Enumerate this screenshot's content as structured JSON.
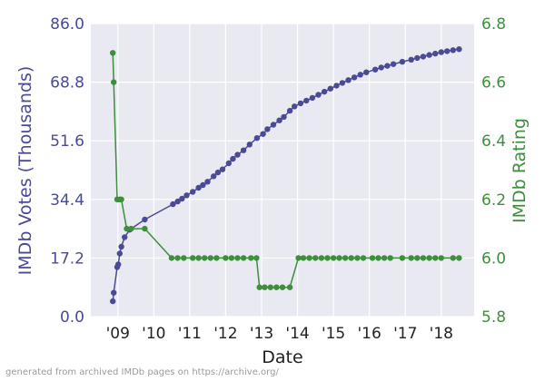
{
  "chart_data": {
    "type": "line",
    "x_axis": {
      "label": "Date",
      "type": "date",
      "range": [
        "2008-04-01",
        "2018-12-01"
      ],
      "ticks": [
        {
          "date": "2009-01-01",
          "label": "'09"
        },
        {
          "date": "2010-01-01",
          "label": "'10"
        },
        {
          "date": "2011-01-01",
          "label": "'11"
        },
        {
          "date": "2012-01-01",
          "label": "'12"
        },
        {
          "date": "2013-01-01",
          "label": "'13"
        },
        {
          "date": "2014-01-01",
          "label": "'14"
        },
        {
          "date": "2015-01-01",
          "label": "'15"
        },
        {
          "date": "2016-01-01",
          "label": "'16"
        },
        {
          "date": "2017-01-01",
          "label": "'17"
        },
        {
          "date": "2018-01-01",
          "label": "'18"
        }
      ]
    },
    "y_left": {
      "label": "IMDb Votes (Thousands)",
      "range": [
        0,
        86
      ],
      "ticks": [
        "0.0",
        "17.2",
        "34.4",
        "51.6",
        "68.8",
        "86.0"
      ],
      "tick_values": [
        0,
        17.2,
        34.4,
        51.6,
        68.8,
        86.0
      ],
      "color": "#4a4a96"
    },
    "y_right": {
      "label": "IMDb Rating",
      "range": [
        5.8,
        6.8
      ],
      "ticks": [
        "5.8",
        "6.0",
        "6.2",
        "6.4",
        "6.6",
        "6.8"
      ],
      "tick_values": [
        5.8,
        6.0,
        6.2,
        6.4,
        6.6,
        6.8
      ],
      "color": "#3e8e3e"
    },
    "grid": true,
    "background": "#e9e9f1",
    "series": [
      {
        "axis": "left",
        "color": "#4a4a96",
        "points": [
          [
            "2008-11-10",
            4.5
          ],
          [
            "2008-11-20",
            7
          ],
          [
            "2008-12-25",
            14.5
          ],
          [
            "2009-01-05",
            15.3
          ],
          [
            "2009-01-20",
            18.5
          ],
          [
            "2009-02-05",
            20.5
          ],
          [
            "2009-03-10",
            23.3
          ],
          [
            "2009-05-01",
            25.5
          ],
          [
            "2009-10-01",
            28.5
          ],
          [
            "2010-07-15",
            33
          ],
          [
            "2010-09-01",
            33.8
          ],
          [
            "2010-10-15",
            34.6
          ],
          [
            "2010-12-01",
            35.6
          ],
          [
            "2011-02-01",
            36.6
          ],
          [
            "2011-04-01",
            37.8
          ],
          [
            "2011-05-15",
            38.6
          ],
          [
            "2011-07-01",
            39.6
          ],
          [
            "2011-09-01",
            41.2
          ],
          [
            "2011-10-15",
            42.3
          ],
          [
            "2011-12-01",
            43.2
          ],
          [
            "2012-02-01",
            45
          ],
          [
            "2012-03-15",
            46.3
          ],
          [
            "2012-05-01",
            47.5
          ],
          [
            "2012-07-01",
            48.8
          ],
          [
            "2012-09-01",
            50.5
          ],
          [
            "2012-11-15",
            52.4
          ],
          [
            "2013-01-15",
            53.6
          ],
          [
            "2013-03-01",
            55
          ],
          [
            "2013-05-01",
            56.3
          ],
          [
            "2013-07-01",
            57.6
          ],
          [
            "2013-08-15",
            58.6
          ],
          [
            "2013-10-15",
            60.4
          ],
          [
            "2013-12-01",
            61.7
          ],
          [
            "2014-02-01",
            62.6
          ],
          [
            "2014-04-01",
            63.4
          ],
          [
            "2014-06-01",
            64.2
          ],
          [
            "2014-08-01",
            65.1
          ],
          [
            "2014-10-01",
            66
          ],
          [
            "2014-12-01",
            66.9
          ],
          [
            "2015-02-01",
            67.8
          ],
          [
            "2015-04-01",
            68.6
          ],
          [
            "2015-06-01",
            69.4
          ],
          [
            "2015-08-01",
            70.2
          ],
          [
            "2015-10-01",
            71
          ],
          [
            "2015-12-01",
            71.7
          ],
          [
            "2016-03-01",
            72.5
          ],
          [
            "2016-05-01",
            73.1
          ],
          [
            "2016-07-01",
            73.6
          ],
          [
            "2016-09-01",
            74.1
          ],
          [
            "2016-12-01",
            74.8
          ],
          [
            "2017-03-01",
            75.4
          ],
          [
            "2017-05-01",
            75.9
          ],
          [
            "2017-07-01",
            76.3
          ],
          [
            "2017-09-01",
            76.8
          ],
          [
            "2017-11-01",
            77.2
          ],
          [
            "2018-01-01",
            77.6
          ],
          [
            "2018-03-01",
            77.9
          ],
          [
            "2018-05-01",
            78.2
          ],
          [
            "2018-07-01",
            78.5
          ]
        ]
      },
      {
        "axis": "right",
        "color": "#3e8e3e",
        "points": [
          [
            "2008-11-10",
            6.7
          ],
          [
            "2008-11-20",
            6.6
          ],
          [
            "2008-12-25",
            6.2
          ],
          [
            "2009-01-20",
            6.2
          ],
          [
            "2009-02-05",
            6.2
          ],
          [
            "2009-04-01",
            6.1
          ],
          [
            "2009-05-15",
            6.1
          ],
          [
            "2009-10-01",
            6.1
          ],
          [
            "2010-07-01",
            6.0
          ],
          [
            "2010-09-01",
            6.0
          ],
          [
            "2010-11-01",
            6.0
          ],
          [
            "2011-02-01",
            6.0
          ],
          [
            "2011-04-01",
            6.0
          ],
          [
            "2011-06-01",
            6.0
          ],
          [
            "2011-08-01",
            6.0
          ],
          [
            "2011-10-01",
            6.0
          ],
          [
            "2012-01-01",
            6.0
          ],
          [
            "2012-03-01",
            6.0
          ],
          [
            "2012-05-01",
            6.0
          ],
          [
            "2012-07-01",
            6.0
          ],
          [
            "2012-09-15",
            6.0
          ],
          [
            "2012-11-10",
            6.0
          ],
          [
            "2012-12-10",
            5.9
          ],
          [
            "2013-02-01",
            5.9
          ],
          [
            "2013-04-01",
            5.9
          ],
          [
            "2013-06-01",
            5.9
          ],
          [
            "2013-08-01",
            5.9
          ],
          [
            "2013-10-15",
            5.9
          ],
          [
            "2014-01-10",
            6.0
          ],
          [
            "2014-03-01",
            6.0
          ],
          [
            "2014-05-01",
            6.0
          ],
          [
            "2014-07-01",
            6.0
          ],
          [
            "2014-09-01",
            6.0
          ],
          [
            "2014-11-01",
            6.0
          ],
          [
            "2015-01-01",
            6.0
          ],
          [
            "2015-03-01",
            6.0
          ],
          [
            "2015-05-01",
            6.0
          ],
          [
            "2015-07-01",
            6.0
          ],
          [
            "2015-09-01",
            6.0
          ],
          [
            "2015-11-01",
            6.0
          ],
          [
            "2016-02-01",
            6.0
          ],
          [
            "2016-04-01",
            6.0
          ],
          [
            "2016-06-01",
            6.0
          ],
          [
            "2016-08-01",
            6.0
          ],
          [
            "2016-12-01",
            6.0
          ],
          [
            "2017-03-01",
            6.0
          ],
          [
            "2017-05-01",
            6.0
          ],
          [
            "2017-07-01",
            6.0
          ],
          [
            "2017-09-01",
            6.0
          ],
          [
            "2017-11-01",
            6.0
          ],
          [
            "2018-01-01",
            6.0
          ],
          [
            "2018-05-01",
            6.0
          ],
          [
            "2018-07-01",
            6.0
          ]
        ]
      }
    ]
  },
  "footer": {
    "text": "generated from archived IMDb pages on https://archive.org/"
  }
}
